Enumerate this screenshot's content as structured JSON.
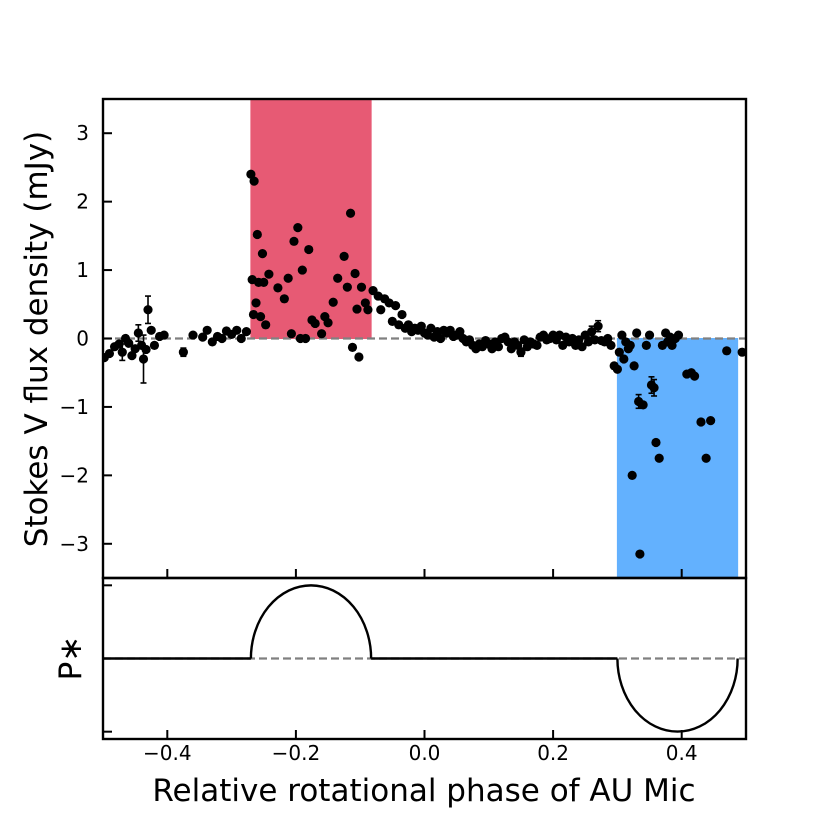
{
  "chart_data": [
    {
      "type": "scatter",
      "panel": "top",
      "xlabel": "Relative rotational phase of AU Mic",
      "ylabel": "Stokes V flux density (mJy)",
      "xlim": [
        -0.5,
        0.5
      ],
      "ylim": [
        -3.5,
        3.5
      ],
      "xticks": [
        -0.4,
        -0.2,
        0.0,
        0.2,
        0.4
      ],
      "xtick_labels": [
        "−0.4",
        "−0.2",
        "0.0",
        "0.2",
        "0.4"
      ],
      "yticks": [
        3,
        2,
        1,
        0,
        -1,
        -2,
        -3
      ],
      "ytick_labels": [
        "3",
        "2",
        "1",
        "0",
        "−1",
        "−2",
        "−3"
      ],
      "reference_line": {
        "y": 0,
        "style": "dashed",
        "color": "#808080"
      },
      "shaded_regions": [
        {
          "x0": -0.27,
          "x1": -0.083,
          "y0": 0,
          "y1": 3.5,
          "color": "#e75a74"
        },
        {
          "x0": 0.3,
          "x1": 0.487,
          "y0": -3.5,
          "y1": 0,
          "color": "#63b1fe"
        }
      ],
      "points": [
        {
          "x": -0.498,
          "y": -0.28
        },
        {
          "x": -0.49,
          "y": -0.22
        },
        {
          "x": -0.482,
          "y": -0.12
        },
        {
          "x": -0.475,
          "y": -0.08
        },
        {
          "x": -0.47,
          "y": -0.2,
          "err": 0.12
        },
        {
          "x": -0.465,
          "y": 0.0
        },
        {
          "x": -0.46,
          "y": -0.07
        },
        {
          "x": -0.455,
          "y": -0.25
        },
        {
          "x": -0.45,
          "y": -0.15
        },
        {
          "x": -0.445,
          "y": 0.08,
          "err": 0.12
        },
        {
          "x": -0.44,
          "y": -0.1
        },
        {
          "x": -0.437,
          "y": -0.3,
          "err": 0.35
        },
        {
          "x": -0.433,
          "y": -0.16
        },
        {
          "x": -0.43,
          "y": 0.42,
          "err": 0.2
        },
        {
          "x": -0.425,
          "y": 0.12
        },
        {
          "x": -0.42,
          "y": -0.1
        },
        {
          "x": -0.412,
          "y": 0.03
        },
        {
          "x": -0.405,
          "y": 0.05
        },
        {
          "x": -0.375,
          "y": -0.2,
          "err": 0.06
        },
        {
          "x": -0.36,
          "y": 0.05
        },
        {
          "x": -0.345,
          "y": 0.02
        },
        {
          "x": -0.338,
          "y": 0.12
        },
        {
          "x": -0.33,
          "y": -0.05
        },
        {
          "x": -0.322,
          "y": 0.03
        },
        {
          "x": -0.315,
          "y": 0.0
        },
        {
          "x": -0.308,
          "y": 0.11
        },
        {
          "x": -0.3,
          "y": 0.06
        },
        {
          "x": -0.292,
          "y": 0.12
        },
        {
          "x": -0.285,
          "y": 0.0
        },
        {
          "x": -0.277,
          "y": 0.1
        },
        {
          "x": -0.27,
          "y": 2.4
        },
        {
          "x": -0.265,
          "y": 2.3
        },
        {
          "x": -0.268,
          "y": 0.86
        },
        {
          "x": -0.266,
          "y": 0.35
        },
        {
          "x": -0.262,
          "y": 0.52
        },
        {
          "x": -0.26,
          "y": 1.52
        },
        {
          "x": -0.258,
          "y": 0.82
        },
        {
          "x": -0.255,
          "y": 0.32
        },
        {
          "x": -0.252,
          "y": 1.24
        },
        {
          "x": -0.25,
          "y": 0.82
        },
        {
          "x": -0.247,
          "y": 0.2
        },
        {
          "x": -0.242,
          "y": 0.94
        },
        {
          "x": -0.228,
          "y": 0.74
        },
        {
          "x": -0.218,
          "y": 0.58
        },
        {
          "x": -0.212,
          "y": 0.88
        },
        {
          "x": -0.207,
          "y": 0.07
        },
        {
          "x": -0.203,
          "y": 1.42
        },
        {
          "x": -0.197,
          "y": 1.62
        },
        {
          "x": -0.193,
          "y": 0.0
        },
        {
          "x": -0.19,
          "y": 1.0
        },
        {
          "x": -0.185,
          "y": 0.0
        },
        {
          "x": -0.18,
          "y": 1.3
        },
        {
          "x": -0.175,
          "y": 0.27
        },
        {
          "x": -0.17,
          "y": 0.22
        },
        {
          "x": -0.16,
          "y": 0.07
        },
        {
          "x": -0.155,
          "y": 0.32
        },
        {
          "x": -0.15,
          "y": 0.23
        },
        {
          "x": -0.142,
          "y": 0.53
        },
        {
          "x": -0.135,
          "y": 0.88
        },
        {
          "x": -0.125,
          "y": 1.2
        },
        {
          "x": -0.12,
          "y": 0.75
        },
        {
          "x": -0.115,
          "y": 1.83
        },
        {
          "x": -0.112,
          "y": -0.13
        },
        {
          "x": -0.108,
          "y": 0.95
        },
        {
          "x": -0.105,
          "y": 0.43
        },
        {
          "x": -0.102,
          "y": -0.27
        },
        {
          "x": -0.098,
          "y": 0.75
        },
        {
          "x": -0.092,
          "y": 0.52
        },
        {
          "x": -0.088,
          "y": 0.42
        },
        {
          "x": -0.08,
          "y": 0.7
        },
        {
          "x": -0.072,
          "y": 0.62
        },
        {
          "x": -0.068,
          "y": 0.42
        },
        {
          "x": -0.062,
          "y": 0.58
        },
        {
          "x": -0.055,
          "y": 0.52
        },
        {
          "x": -0.05,
          "y": 0.25
        },
        {
          "x": -0.045,
          "y": 0.48
        },
        {
          "x": -0.04,
          "y": 0.2
        },
        {
          "x": -0.035,
          "y": 0.35
        },
        {
          "x": -0.03,
          "y": 0.15
        },
        {
          "x": -0.025,
          "y": 0.2
        },
        {
          "x": -0.02,
          "y": 0.1
        },
        {
          "x": -0.015,
          "y": 0.15
        },
        {
          "x": -0.01,
          "y": 0.12
        },
        {
          "x": -0.005,
          "y": 0.18
        },
        {
          "x": 0.0,
          "y": 0.08
        },
        {
          "x": 0.005,
          "y": 0.05
        },
        {
          "x": 0.01,
          "y": 0.15
        },
        {
          "x": 0.015,
          "y": 0.02
        },
        {
          "x": 0.02,
          "y": 0.1
        },
        {
          "x": 0.025,
          "y": 0.0
        },
        {
          "x": 0.03,
          "y": 0.12
        },
        {
          "x": 0.035,
          "y": 0.08
        },
        {
          "x": 0.04,
          "y": 0.12
        },
        {
          "x": 0.045,
          "y": 0.03
        },
        {
          "x": 0.05,
          "y": 0.05
        },
        {
          "x": 0.055,
          "y": 0.1
        },
        {
          "x": 0.06,
          "y": 0.0
        },
        {
          "x": 0.065,
          "y": -0.05
        },
        {
          "x": 0.07,
          "y": -0.02
        },
        {
          "x": 0.075,
          "y": -0.1
        },
        {
          "x": 0.08,
          "y": -0.15
        },
        {
          "x": 0.085,
          "y": -0.08
        },
        {
          "x": 0.09,
          "y": -0.12
        },
        {
          "x": 0.095,
          "y": -0.03
        },
        {
          "x": 0.1,
          "y": -0.08
        },
        {
          "x": 0.105,
          "y": -0.15
        },
        {
          "x": 0.11,
          "y": -0.05
        },
        {
          "x": 0.115,
          "y": -0.12
        },
        {
          "x": 0.12,
          "y": 0.0
        },
        {
          "x": 0.125,
          "y": 0.02
        },
        {
          "x": 0.13,
          "y": -0.05
        },
        {
          "x": 0.135,
          "y": -0.15
        },
        {
          "x": 0.14,
          "y": -0.05
        },
        {
          "x": 0.145,
          "y": -0.1
        },
        {
          "x": 0.15,
          "y": -0.2,
          "err": 0.06
        },
        {
          "x": 0.155,
          "y": -0.02
        },
        {
          "x": 0.16,
          "y": -0.12
        },
        {
          "x": 0.165,
          "y": -0.05
        },
        {
          "x": 0.17,
          "y": -0.08
        },
        {
          "x": 0.175,
          "y": -0.1
        },
        {
          "x": 0.18,
          "y": 0.02
        },
        {
          "x": 0.185,
          "y": 0.05
        },
        {
          "x": 0.19,
          "y": -0.02
        },
        {
          "x": 0.195,
          "y": 0.0
        },
        {
          "x": 0.2,
          "y": 0.05
        },
        {
          "x": 0.205,
          "y": -0.02
        },
        {
          "x": 0.21,
          "y": 0.05
        },
        {
          "x": 0.215,
          "y": -0.1
        },
        {
          "x": 0.22,
          "y": 0.02
        },
        {
          "x": 0.225,
          "y": -0.05
        },
        {
          "x": 0.23,
          "y": 0.0
        },
        {
          "x": 0.235,
          "y": -0.1
        },
        {
          "x": 0.24,
          "y": -0.02
        },
        {
          "x": 0.245,
          "y": -0.12
        },
        {
          "x": 0.25,
          "y": 0.05
        },
        {
          "x": 0.255,
          "y": -0.05
        },
        {
          "x": 0.26,
          "y": 0.1,
          "err": 0.08
        },
        {
          "x": 0.265,
          "y": -0.02
        },
        {
          "x": 0.27,
          "y": 0.18,
          "err": 0.08
        },
        {
          "x": 0.275,
          "y": -0.03
        },
        {
          "x": 0.28,
          "y": -0.05
        },
        {
          "x": 0.285,
          "y": 0.0
        },
        {
          "x": 0.29,
          "y": -0.1
        },
        {
          "x": 0.295,
          "y": -0.4
        },
        {
          "x": 0.3,
          "y": -0.45
        },
        {
          "x": 0.303,
          "y": -0.2
        },
        {
          "x": 0.307,
          "y": 0.05
        },
        {
          "x": 0.31,
          "y": -0.3
        },
        {
          "x": 0.313,
          "y": -0.05
        },
        {
          "x": 0.317,
          "y": -0.15
        },
        {
          "x": 0.32,
          "y": -0.1
        },
        {
          "x": 0.323,
          "y": -2.0
        },
        {
          "x": 0.326,
          "y": -0.4
        },
        {
          "x": 0.33,
          "y": 0.08
        },
        {
          "x": 0.333,
          "y": -0.92,
          "err": 0.1
        },
        {
          "x": 0.335,
          "y": -3.15
        },
        {
          "x": 0.34,
          "y": -0.97
        },
        {
          "x": 0.345,
          "y": -0.1
        },
        {
          "x": 0.35,
          "y": 0.05
        },
        {
          "x": 0.353,
          "y": -0.68,
          "err": 0.12
        },
        {
          "x": 0.357,
          "y": -0.72,
          "err": 0.12
        },
        {
          "x": 0.36,
          "y": -1.52
        },
        {
          "x": 0.365,
          "y": -1.75
        },
        {
          "x": 0.37,
          "y": -0.1
        },
        {
          "x": 0.375,
          "y": 0.08
        },
        {
          "x": 0.378,
          "y": -0.05
        },
        {
          "x": 0.382,
          "y": 0.02
        },
        {
          "x": 0.385,
          "y": -0.1
        },
        {
          "x": 0.39,
          "y": 0.0
        },
        {
          "x": 0.395,
          "y": 0.05
        },
        {
          "x": 0.408,
          "y": -0.52
        },
        {
          "x": 0.415,
          "y": -0.5
        },
        {
          "x": 0.42,
          "y": -0.55
        },
        {
          "x": 0.43,
          "y": -1.22
        },
        {
          "x": 0.438,
          "y": -1.75
        },
        {
          "x": 0.445,
          "y": -1.2
        },
        {
          "x": 0.47,
          "y": -0.18
        },
        {
          "x": 0.494,
          "y": -0.2
        }
      ]
    },
    {
      "type": "line",
      "panel": "bottom",
      "ylabel": "P∗",
      "xlim": [
        -0.5,
        0.5
      ],
      "ylim": [
        -1.1,
        1.1
      ],
      "reference_line": {
        "y": 0,
        "style": "dashed",
        "color": "#808080"
      },
      "segments": [
        {
          "shape": "flat",
          "x0": -0.5,
          "x1": -0.27,
          "y": 0
        },
        {
          "shape": "half-ellipse",
          "x0": -0.27,
          "x1": -0.083,
          "peak": 1.0
        },
        {
          "shape": "flat",
          "x0": -0.083,
          "x1": 0.3,
          "y": 0
        },
        {
          "shape": "half-ellipse",
          "x0": 0.3,
          "x1": 0.487,
          "peak": -1.0
        }
      ]
    }
  ]
}
